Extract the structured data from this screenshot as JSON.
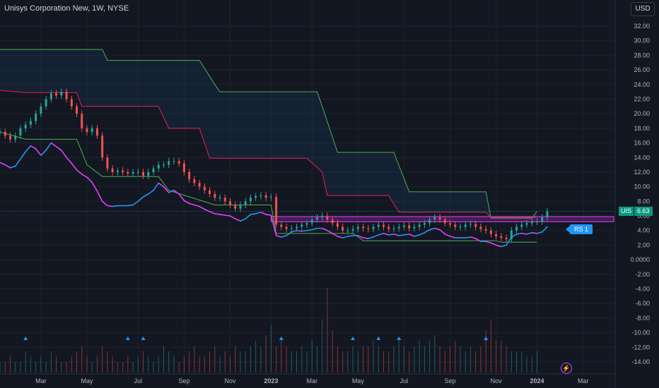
{
  "header": {
    "title": "Unisys Corporation New, 1W, NYSE",
    "currency": "USD"
  },
  "markers": {
    "symbol": "UIS",
    "last_price": "6.63",
    "rs_label": "RS 1",
    "flash_icon": "lightning-icon"
  },
  "colors": {
    "up": "#26a69a",
    "down": "#ef5350",
    "upper_band": "#4caf50",
    "mid_band": "#e91e63",
    "rs_line": "#2196f3",
    "rs_line_alt": "#e040fb",
    "zone": "#9c27b0",
    "triangle": "#2196f3"
  },
  "chart_data": {
    "type": "candlestick",
    "title": "Unisys Corporation New, 1W, NYSE",
    "y_ticks": [
      "32.00",
      "30.00",
      "28.00",
      "26.00",
      "24.00",
      "22.00",
      "20.00",
      "18.00",
      "16.00",
      "14.00",
      "12.00",
      "10.00",
      "8.00",
      "6.00",
      "4.00",
      "2.00",
      "0.0000",
      "-2.00",
      "-4.00",
      "-6.00",
      "-8.00",
      "-10.00",
      "-12.00",
      "-14.00"
    ],
    "ylim": [
      -15,
      33
    ],
    "x_ticks": [
      "Mar",
      "May",
      "Jul",
      "Sep",
      "Nov",
      "2023",
      "Mar",
      "May",
      "Jul",
      "Sep",
      "Nov",
      "2024",
      "Mar"
    ],
    "x_tick_weeks": [
      8,
      17,
      27,
      36,
      45,
      53,
      61,
      70,
      79,
      88,
      97,
      105,
      114
    ],
    "weeks_span": [
      0,
      120
    ],
    "price_weekly": [
      17.5,
      17,
      16.5,
      17,
      18,
      18.5,
      19,
      20,
      21,
      22,
      22.8,
      22.5,
      23,
      22,
      21,
      20,
      18,
      17.5,
      18,
      17,
      14,
      12.5,
      12,
      12.2,
      12,
      11.8,
      12,
      12,
      11.5,
      12,
      12.5,
      13,
      13,
      13.5,
      13.5,
      13.2,
      12,
      11,
      10.5,
      10,
      9.5,
      9,
      8.5,
      8.5,
      8,
      7.5,
      7,
      7.5,
      8,
      8.5,
      8.7,
      8.8,
      8.5,
      8.6,
      4.8,
      4.5,
      4.2,
      4.3,
      4.5,
      4.8,
      5,
      5.5,
      5.8,
      6,
      5.5,
      5,
      4.5,
      4,
      4,
      4.2,
      4.5,
      4.3,
      4.2,
      4.5,
      4.8,
      4.5,
      4.2,
      4.3,
      4.5,
      4.7,
      4.3,
      4.5,
      4.8,
      5,
      5.5,
      5.8,
      5.5,
      5,
      4.8,
      4.5,
      4.5,
      4.8,
      4.9,
      4.5,
      4.2,
      4,
      3.5,
      3.2,
      3,
      2.8,
      4,
      4.5,
      4.8,
      5,
      5.2,
      5.2,
      5.8,
      6.63
    ],
    "upper_band": [
      [
        0,
        28.8
      ],
      [
        20,
        28.8
      ],
      [
        21,
        27.3
      ],
      [
        39,
        27.3
      ],
      [
        42,
        24
      ],
      [
        43,
        23
      ],
      [
        62,
        23
      ],
      [
        63,
        21
      ],
      [
        66,
        14.7
      ],
      [
        77,
        14.7
      ],
      [
        80,
        9.3
      ],
      [
        95,
        9.3
      ],
      [
        96,
        5.7
      ],
      [
        104,
        5.7
      ],
      [
        105,
        6.63
      ]
    ],
    "mid_band": [
      [
        0,
        23.2
      ],
      [
        5,
        22.9
      ],
      [
        15,
        22.9
      ],
      [
        16,
        21
      ],
      [
        31,
        21
      ],
      [
        33,
        18
      ],
      [
        39,
        18
      ],
      [
        41,
        13.9
      ],
      [
        60,
        13.9
      ],
      [
        63,
        12
      ],
      [
        64,
        8.8
      ],
      [
        76,
        8.8
      ],
      [
        78,
        6.5
      ],
      [
        95,
        6.5
      ],
      [
        96,
        5.8
      ],
      [
        105,
        5.8
      ]
    ],
    "lower_band": [
      [
        0,
        17.5
      ],
      [
        5,
        16.5
      ],
      [
        15,
        16.5
      ],
      [
        17,
        13
      ],
      [
        20,
        11.4
      ],
      [
        31,
        11.4
      ],
      [
        33,
        9.5
      ],
      [
        42,
        7.5
      ],
      [
        53,
        7.5
      ],
      [
        54,
        3.6
      ],
      [
        69,
        3.6
      ],
      [
        71,
        2.6
      ],
      [
        97,
        2.6
      ],
      [
        98,
        2.4
      ],
      [
        105,
        2.4
      ]
    ],
    "rs_line": [
      13.3,
      13.0,
      12.6,
      12.8,
      13.8,
      14.8,
      15.6,
      15.2,
      14.3,
      15.0,
      16.0,
      15.5,
      15.0,
      14.0,
      13.2,
      12.3,
      11.7,
      11.3,
      10.6,
      9.4,
      8.0,
      7.4,
      7.3,
      7.4,
      7.4,
      7.4,
      7.5,
      8.0,
      8.6,
      9.0,
      9.5,
      10.5,
      10.0,
      9.2,
      9.5,
      9.0,
      8.1,
      7.7,
      7.5,
      7.3,
      6.9,
      6.6,
      6.3,
      6.2,
      6.1,
      6.0,
      5.6,
      5.3,
      5.6,
      6.2,
      6.3,
      6.5,
      6.2,
      6.1,
      3.3,
      3.1,
      3.3,
      3.8,
      4.0,
      3.9,
      4.0,
      4.1,
      4.3,
      4.3,
      4.0,
      3.6,
      3.2,
      3.0,
      3.2,
      3.3,
      3.3,
      3.0,
      2.9,
      3.1,
      3.4,
      3.6,
      3.4,
      3.5,
      3.3,
      3.4,
      3.5,
      3.2,
      3.4,
      3.7,
      4.1,
      4.3,
      4.1,
      3.5,
      3.2,
      3.0,
      3.0,
      3.0,
      3.1,
      2.9,
      2.5,
      2.5,
      2.3,
      2.0,
      1.8,
      2.0,
      3.1,
      3.5,
      3.6,
      3.5,
      3.7,
      3.6,
      3.8,
      4.5
    ],
    "zone": {
      "low": 5.2,
      "high": 5.9,
      "from_week": 53,
      "to_week": 120
    },
    "triangles_weeks": [
      5,
      25,
      28,
      55,
      69,
      74,
      78,
      95
    ],
    "volume_weekly": [
      2,
      2,
      3,
      2,
      2,
      4,
      3,
      2,
      3,
      2,
      4,
      3,
      2,
      2,
      3,
      4,
      5,
      3,
      2,
      3,
      5,
      4,
      3,
      2,
      2,
      3,
      2,
      3,
      4,
      3,
      2,
      3,
      5,
      4,
      3,
      2,
      3,
      4,
      5,
      3,
      3,
      4,
      5,
      3,
      4,
      3,
      5,
      4,
      4,
      5,
      6,
      5,
      7,
      9,
      5,
      6,
      5,
      4,
      4,
      5,
      4,
      6,
      5,
      10,
      16,
      8,
      5,
      4,
      4,
      5,
      4,
      5,
      5,
      6,
      5,
      4,
      4,
      5,
      6,
      5,
      4,
      5,
      6,
      5,
      6,
      7,
      5,
      4,
      5,
      6,
      5,
      4,
      5,
      4,
      5,
      8,
      10,
      6,
      6,
      5,
      4,
      4,
      4,
      3,
      3,
      4
    ]
  }
}
